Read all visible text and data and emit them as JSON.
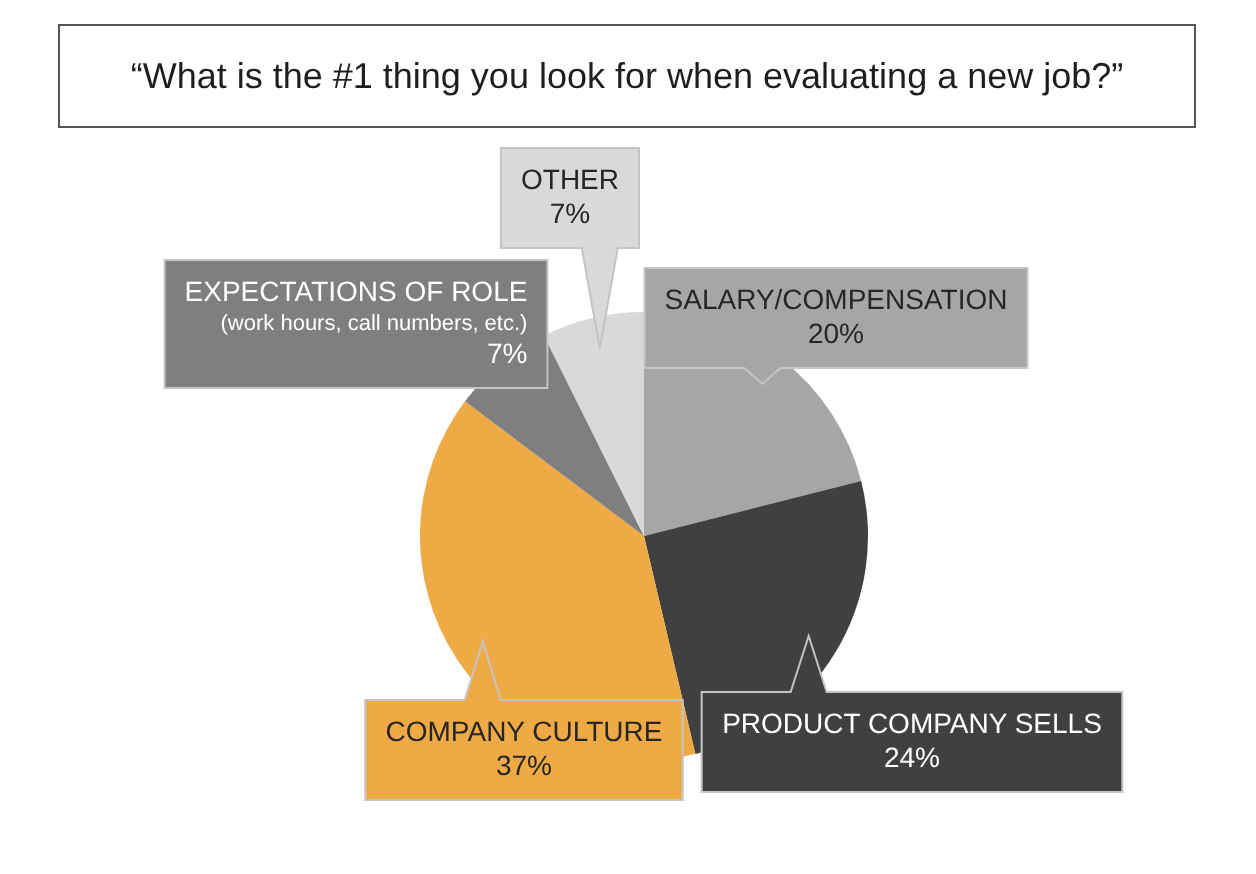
{
  "chart_data": {
    "type": "pie",
    "title": "“What is the #1 thing you look for when evaluating a new job?”",
    "categories": [
      "SALARY/COMPENSATION",
      "PRODUCT COMPANY SELLS",
      "COMPANY CULTURE",
      "EXPECTATIONS OF ROLE",
      "OTHER"
    ],
    "values": [
      20,
      24,
      37,
      7,
      7
    ],
    "value_labels": [
      "20%",
      "24%",
      "37%",
      "7%",
      "7%"
    ],
    "colors": [
      "#a6a6a6",
      "#404040",
      "#efaa45",
      "#7f7f7f",
      "#d9d9d9"
    ],
    "annotations": [
      {
        "text": "(work hours, call numbers, etc.)",
        "x": "EXPECTATIONS OF ROLE"
      }
    ]
  }
}
